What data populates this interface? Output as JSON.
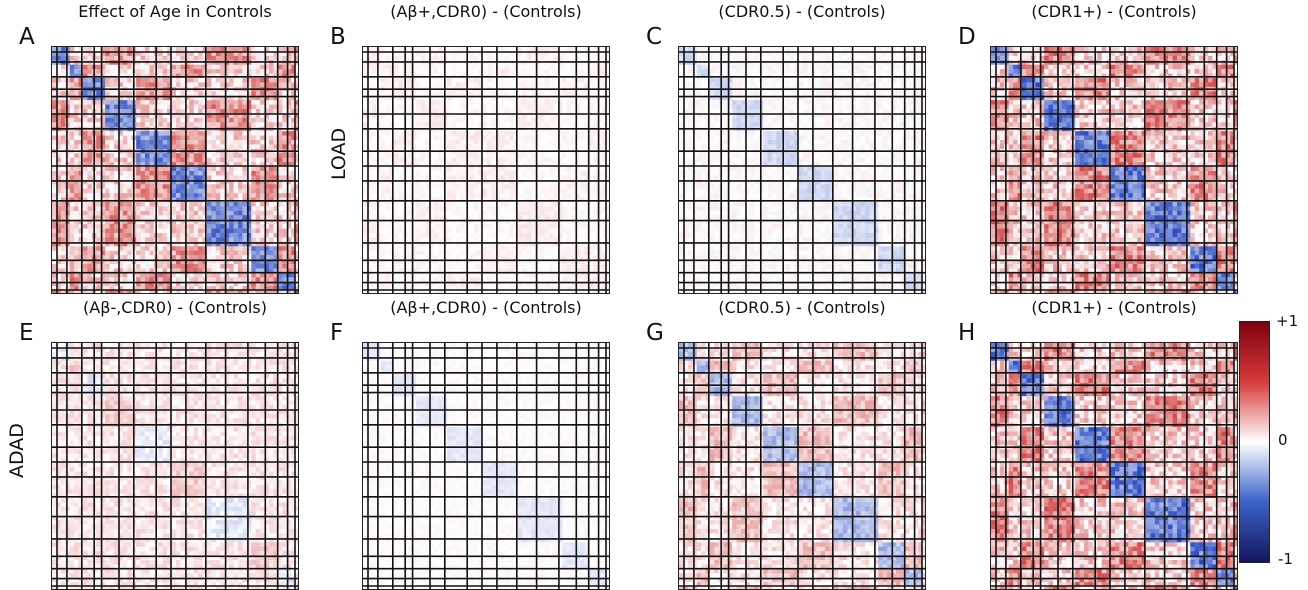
{
  "figure": {
    "row_labels": [
      "LOAD",
      "ADAD"
    ],
    "colorbar": {
      "max_label": "+1",
      "mid_label": "0",
      "min_label": "-1",
      "colors": {
        "high": "#7f0010",
        "midhigh": "#d63b3b",
        "zero": "#ffffff",
        "midlow": "#3b62c8",
        "low": "#14165e"
      }
    }
  },
  "chart_data": [
    {
      "type": "heatmap",
      "letter": "A",
      "title": "Effect of Age in Controls",
      "row": 1,
      "col": 1,
      "intensity": 0.85,
      "pattern": "age"
    },
    {
      "type": "heatmap",
      "letter": "B",
      "title": "(Aβ+,CDR0) - (Controls)",
      "row": 1,
      "col": 2,
      "intensity": 0.18,
      "pattern": "faint-pos"
    },
    {
      "type": "heatmap",
      "letter": "C",
      "title": "(CDR0.5) - (Controls)",
      "row": 1,
      "col": 3,
      "intensity": 0.25,
      "pattern": "faint-neg"
    },
    {
      "type": "heatmap",
      "letter": "D",
      "title": "(CDR1+) - (Controls)",
      "row": 1,
      "col": 4,
      "intensity": 0.95,
      "pattern": "strong"
    },
    {
      "type": "heatmap",
      "letter": "E",
      "title": "(Aβ-,CDR0) - (Controls)",
      "row": 2,
      "col": 1,
      "intensity": 0.35,
      "pattern": "mild-pos"
    },
    {
      "type": "heatmap",
      "letter": "F",
      "title": "(Aβ+,CDR0) - (Controls)",
      "row": 2,
      "col": 2,
      "intensity": 0.15,
      "pattern": "faint-neg"
    },
    {
      "type": "heatmap",
      "letter": "G",
      "title": "(CDR0.5) - (Controls)",
      "row": 2,
      "col": 3,
      "intensity": 0.5,
      "pattern": "moderate"
    },
    {
      "type": "heatmap",
      "letter": "H",
      "title": "(CDR1+) - (Controls)",
      "row": 2,
      "col": 4,
      "intensity": 0.95,
      "pattern": "strong"
    }
  ]
}
